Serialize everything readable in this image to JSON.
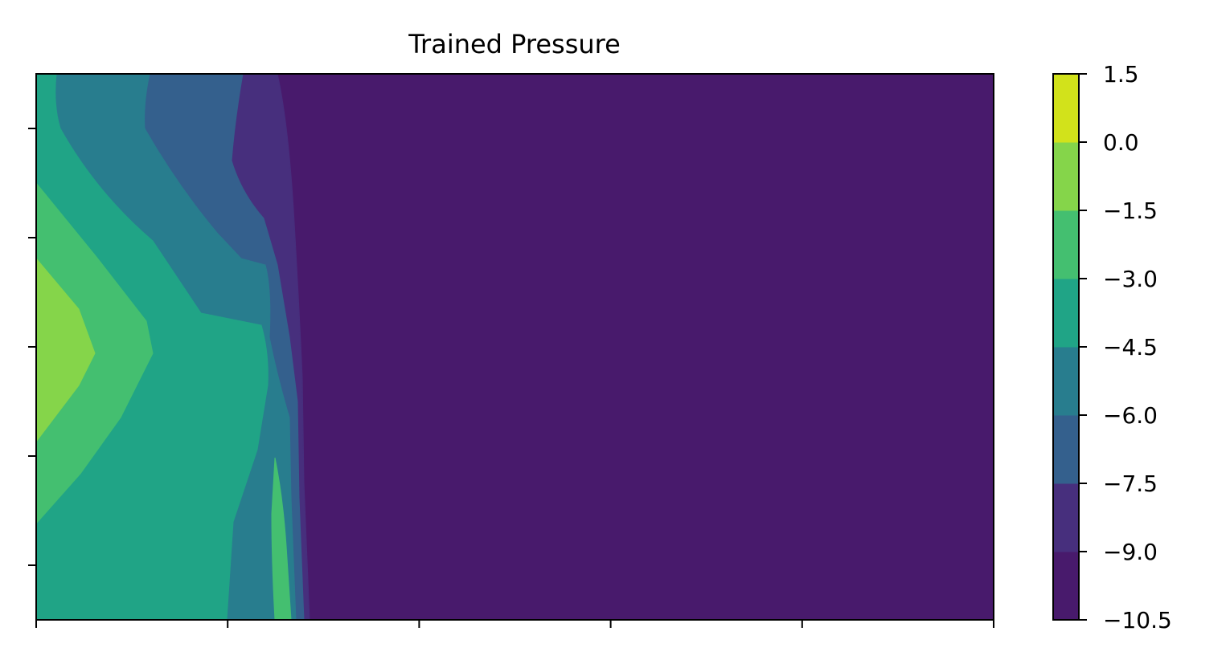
{
  "chart_data": {
    "type": "contourf",
    "title": "Trained Pressure",
    "xlabel": "",
    "ylabel": "",
    "colormap": "viridis",
    "x_ticks_count": 6,
    "y_ticks_count": 5,
    "x_tick_labels_shown": false,
    "y_tick_labels_shown": false,
    "colorbar": {
      "levels": [
        -10.5,
        -9.0,
        -7.5,
        -6.0,
        -4.5,
        -3.0,
        -1.5,
        0.0,
        1.5
      ],
      "tick_labels": [
        "−10.5",
        "−9.0",
        "−7.5",
        "−6.0",
        "−4.5",
        "−3.0",
        "−1.5",
        "0.0",
        "1.5"
      ],
      "band_colors": [
        "#481a6c",
        "#472f7d",
        "#34608d",
        "#287d8e",
        "#20a486",
        "#44bf70",
        "#85d54a",
        "#d2e21b"
      ]
    },
    "regions": [
      {
        "level_band": "-10.5 to -9.0",
        "location": "right portion of domain (x > ~28%)",
        "color": "#481a6c"
      },
      {
        "level_band": "-9.0 to -7.5",
        "location": "narrow pockets near the front",
        "color": "#472f7d"
      },
      {
        "level_band": "-7.5 to -6.0",
        "location": "upper-left band behind the front",
        "color": "#34608d"
      },
      {
        "level_band": "-6.0 to -4.5",
        "location": "left side, surrounding inner bands",
        "color": "#287d8e"
      },
      {
        "level_band": "-4.5 to -3.0",
        "location": "left side, diamond-shaped region",
        "color": "#20a486"
      },
      {
        "level_band": "-3.0 to -1.5",
        "location": "left edge, around the peak; thin sliver near front bottom",
        "color": "#44bf70"
      },
      {
        "level_band": "-1.5 to 0.0",
        "location": "left edge peak at mid-height",
        "color": "#85d54a"
      }
    ]
  }
}
